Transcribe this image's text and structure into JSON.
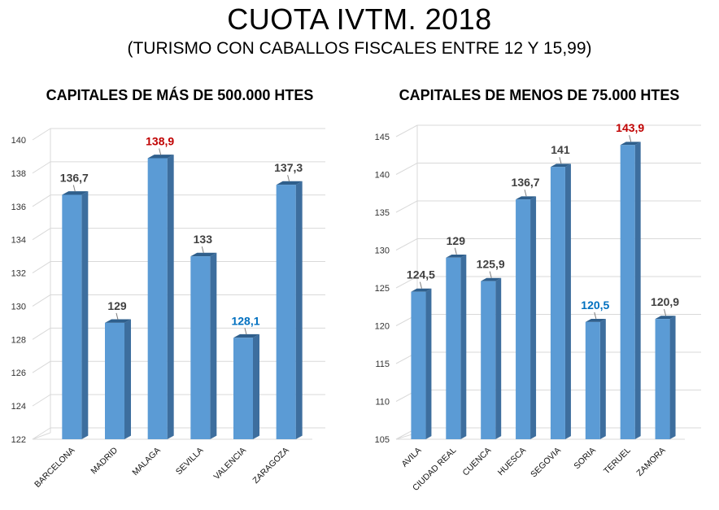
{
  "title": "CUOTA IVTM. 2018",
  "subtitle": "(TURISMO CON CABALLOS FISCALES ENTRE 12 Y 15,99)",
  "colors": {
    "bar_front": "#5b9bd5",
    "bar_side": "#3d6e9e",
    "bar_top": "#2f5f8c",
    "label_default": "#404040",
    "label_max": "#c00000",
    "label_min": "#0070c0",
    "grid": "#d9d9d9"
  },
  "chart_data": [
    {
      "type": "bar",
      "title": "CAPITALES DE MÁS DE 500.000 HTES",
      "categories": [
        "BARCELONA",
        "MADRID",
        "MALAGA",
        "SEVILLA",
        "VALENCIA",
        "ZARAGOZA"
      ],
      "values": [
        136.7,
        129,
        138.9,
        133,
        128.1,
        137.3
      ],
      "value_labels": [
        "136,7",
        "129",
        "138,9",
        "133",
        "128,1",
        "137,3"
      ],
      "highlight": {
        "max_index": 2,
        "min_index": 4
      },
      "ylim": [
        122,
        140
      ],
      "yticks": [
        122,
        124,
        126,
        128,
        130,
        132,
        134,
        136,
        138,
        140
      ],
      "grid": true,
      "xlabel": "",
      "ylabel": ""
    },
    {
      "type": "bar",
      "title": "CAPITALES DE MENOS DE 75.000 HTES",
      "categories": [
        "AVILA",
        "CIUDAD REAL",
        "CUENCA",
        "HUESCA",
        "SEGOVIA",
        "SORIA",
        "TERUEL",
        "ZAMORA"
      ],
      "values": [
        124.5,
        129,
        125.9,
        136.7,
        141,
        120.5,
        143.9,
        120.9
      ],
      "value_labels": [
        "124,5",
        "129",
        "125,9",
        "136,7",
        "141",
        "120,5",
        "143,9",
        "120,9"
      ],
      "highlight": {
        "max_index": 6,
        "min_index": 5
      },
      "ylim": [
        105,
        145
      ],
      "yticks": [
        105,
        110,
        115,
        120,
        125,
        130,
        135,
        140,
        145
      ],
      "grid": true,
      "xlabel": "",
      "ylabel": ""
    }
  ]
}
